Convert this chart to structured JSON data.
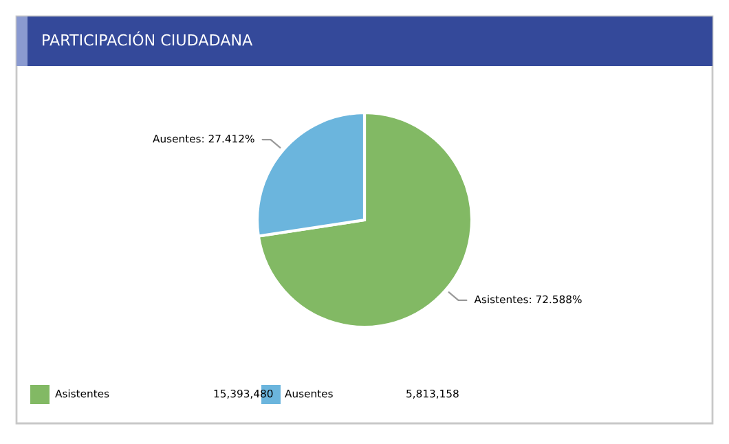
{
  "chart_data": {
    "type": "pie",
    "title": "PARTICIPACIÓN CIUDADANA",
    "categories": [
      "Asistentes",
      "Ausentes"
    ],
    "values": [
      15393480,
      5813158
    ],
    "value_labels": [
      "15,393,480",
      "5,813,158"
    ],
    "colors": [
      "#82b964",
      "#6bb5dd"
    ],
    "annotations": [
      "Asistentes: 72.588%",
      "Ausentes: 27.412%"
    ],
    "legend": "bottom left"
  }
}
